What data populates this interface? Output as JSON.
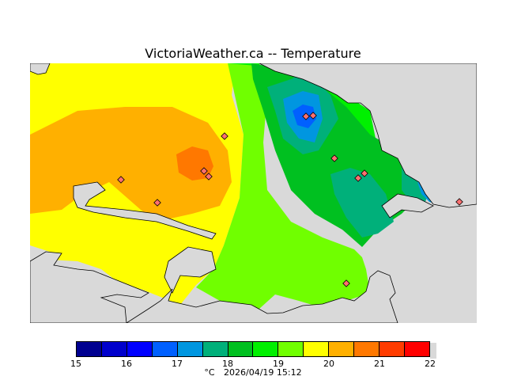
{
  "title": "VictoriaWeather.ca -- Temperature",
  "colorbar": {
    "colors": [
      "#000090",
      "#0000cc",
      "#0000ff",
      "#0060ff",
      "#0096e0",
      "#00b07a",
      "#00c020",
      "#00f000",
      "#70ff00",
      "#ffff00",
      "#ffb000",
      "#ff7800",
      "#ff3c00",
      "#ff0000"
    ],
    "ticks": [
      "15",
      "16",
      "17",
      "18",
      "19",
      "20",
      "21",
      "22"
    ]
  },
  "footer": {
    "unit": "°C",
    "timestamp": "2026/04/19 15:12"
  },
  "colors": {
    "ocean": "#d9d9d9",
    "coast": "#000000",
    "station_marker": "#ff6060"
  },
  "map_data": {
    "type": "contour_temperature_map",
    "min": 15,
    "max": 22,
    "contour_interval": 0.5
  }
}
